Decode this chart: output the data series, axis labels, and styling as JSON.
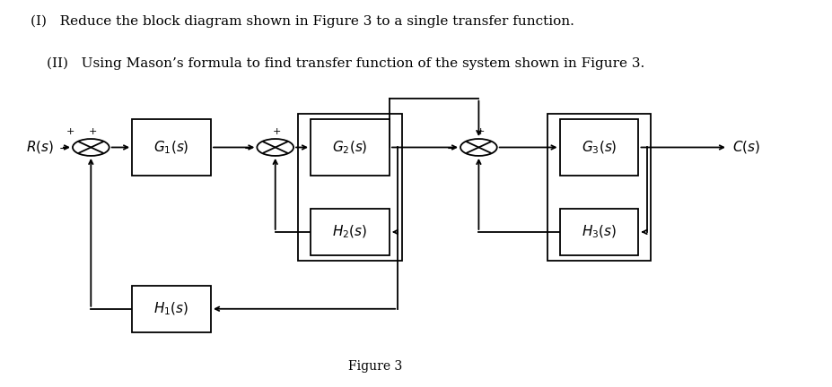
{
  "title_line1": "(I)   Reduce the block diagram shown in Figure 3 to a single transfer function.",
  "title_line2": "(II)   Using Mason’s formula to find transfer function of the system shown in Figure 3.",
  "figure_label": "Figure 3",
  "bg_color": "#ffffff",
  "box_color": "#000000",
  "line_color": "#000000",
  "text_color": "#000000",
  "font_size_text": 11,
  "font_size_caption": 10,
  "font_size_block": 11,
  "font_size_sign": 8
}
